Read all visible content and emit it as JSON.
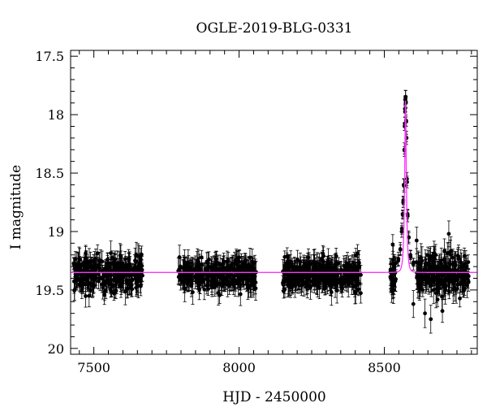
{
  "chart_data": {
    "type": "scatter",
    "title": "OGLE-2019-BLG-0331",
    "xlabel": "HJD - 2450000",
    "ylabel": "I magnitude",
    "xlim": [
      7420,
      8820
    ],
    "ylim": [
      20.05,
      17.45
    ],
    "y_inverted": true,
    "xticks": [
      7500,
      8000,
      8500
    ],
    "xtick_labels": [
      "7500",
      "8000",
      "8500"
    ],
    "yticks": [
      17.5,
      18,
      18.5,
      19,
      19.5,
      20
    ],
    "ytick_labels": [
      "17.5",
      "18",
      "18.5",
      "19",
      "19.5",
      "20"
    ],
    "grid": false,
    "legend": "none",
    "series": [
      {
        "type": "scatter-errorbar",
        "color": "#000000",
        "seasons": [
          {
            "x_range": [
              7430,
              7670
            ],
            "baseline_mag": 19.36,
            "scatter_mag": 0.12,
            "typical_error": 0.08
          },
          {
            "x_range": [
              7790,
              8060
            ],
            "baseline_mag": 19.36,
            "scatter_mag": 0.11,
            "typical_error": 0.08
          },
          {
            "x_range": [
              8150,
              8420
            ],
            "baseline_mag": 19.37,
            "scatter_mag": 0.11,
            "typical_error": 0.08
          },
          {
            "x_range": [
              8520,
              8790
            ],
            "baseline_mag": 19.37,
            "scatter_mag": 0.13,
            "typical_error": 0.09
          }
        ],
        "event_points": [
          {
            "x": 8548,
            "y": 19.25
          },
          {
            "x": 8555,
            "y": 19.15
          },
          {
            "x": 8560,
            "y": 19.0
          },
          {
            "x": 8563,
            "y": 18.85
          },
          {
            "x": 8565,
            "y": 18.75
          },
          {
            "x": 8567,
            "y": 18.6
          },
          {
            "x": 8569,
            "y": 18.3
          },
          {
            "x": 8570,
            "y": 18.1
          },
          {
            "x": 8571,
            "y": 17.95
          },
          {
            "x": 8572,
            "y": 17.87
          },
          {
            "x": 8573,
            "y": 17.85
          },
          {
            "x": 8574,
            "y": 17.9
          },
          {
            "x": 8575,
            "y": 18.05
          },
          {
            "x": 8576,
            "y": 18.2
          },
          {
            "x": 8578,
            "y": 18.55
          },
          {
            "x": 8580,
            "y": 18.85
          },
          {
            "x": 8584,
            "y": 19.05
          },
          {
            "x": 8590,
            "y": 19.2
          },
          {
            "x": 8600,
            "y": 19.28
          }
        ],
        "outliers": [
          {
            "x": 8722,
            "y": 19.02
          },
          {
            "x": 8640,
            "y": 19.7
          },
          {
            "x": 8660,
            "y": 19.75
          },
          {
            "x": 8700,
            "y": 19.68
          },
          {
            "x": 8600,
            "y": 19.62
          },
          {
            "x": 8790,
            "y": 19.43
          }
        ]
      },
      {
        "type": "line",
        "color": "#ff33ff",
        "model": {
          "baseline_mag": 19.35,
          "t0": 8573,
          "peak_mag": 17.88,
          "tE": 6.5,
          "u_shape": "point-lens"
        }
      }
    ]
  }
}
